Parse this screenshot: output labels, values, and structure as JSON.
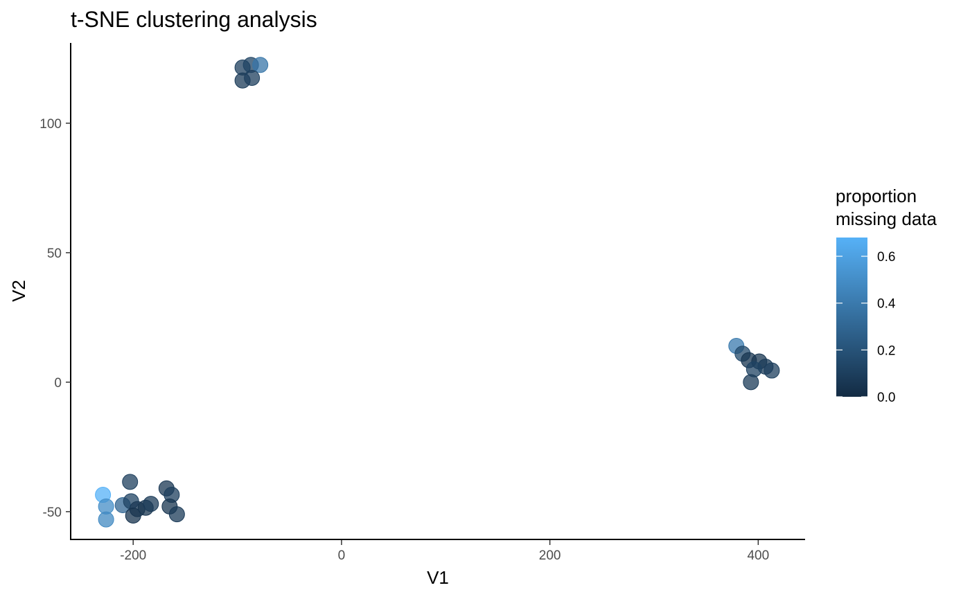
{
  "chart_data": {
    "type": "scatter",
    "title": "t-SNE clustering analysis",
    "xlabel": "V1",
    "ylabel": "V2",
    "xlim": [
      -260,
      445
    ],
    "ylim": [
      -61,
      131
    ],
    "xticks": [
      -200,
      0,
      200,
      400
    ],
    "xtick_labels": [
      "-200",
      "0",
      "200",
      "400"
    ],
    "yticks": [
      -50,
      0,
      50,
      100
    ],
    "ytick_labels": [
      "-50",
      "0",
      "50",
      "100"
    ],
    "grid": false,
    "legend": {
      "title_lines": [
        "proportion",
        "missing data"
      ],
      "placement": "right",
      "range": [
        0,
        0.68
      ],
      "ticks": [
        0.0,
        0.2,
        0.4,
        0.6
      ],
      "tick_labels": [
        "0.0",
        "0.2",
        "0.4",
        "0.6"
      ],
      "color_low": "#132B43",
      "color_high": "#56B1F7"
    },
    "point_opacity": 0.75,
    "points": [
      {
        "x": -95,
        "y": 121.5,
        "c": 0.1
      },
      {
        "x": -87,
        "y": 122.5,
        "c": 0.12
      },
      {
        "x": -78,
        "y": 122.5,
        "c": 0.38
      },
      {
        "x": -95,
        "y": 116.5,
        "c": 0.08
      },
      {
        "x": -86,
        "y": 117.5,
        "c": 0.1
      },
      {
        "x": 379,
        "y": 14,
        "c": 0.4
      },
      {
        "x": 385,
        "y": 11,
        "c": 0.15
      },
      {
        "x": 391,
        "y": 8.5,
        "c": 0.05
      },
      {
        "x": 401,
        "y": 8,
        "c": 0.05
      },
      {
        "x": 407,
        "y": 6,
        "c": 0.08
      },
      {
        "x": 413,
        "y": 4.5,
        "c": 0.1
      },
      {
        "x": 396,
        "y": 5,
        "c": 0.12
      },
      {
        "x": 393,
        "y": 0,
        "c": 0.08
      },
      {
        "x": -229,
        "y": -43.5,
        "c": 0.68
      },
      {
        "x": -226,
        "y": -48,
        "c": 0.5
      },
      {
        "x": -226,
        "y": -53,
        "c": 0.48
      },
      {
        "x": -210,
        "y": -47.5,
        "c": 0.3
      },
      {
        "x": -203,
        "y": -38.5,
        "c": 0.1
      },
      {
        "x": -202,
        "y": -46,
        "c": 0.12
      },
      {
        "x": -196,
        "y": -49,
        "c": 0.06
      },
      {
        "x": -200,
        "y": -51.5,
        "c": 0.04
      },
      {
        "x": -188,
        "y": -48.5,
        "c": 0.05
      },
      {
        "x": -183,
        "y": -47,
        "c": 0.08
      },
      {
        "x": -168,
        "y": -41,
        "c": 0.06
      },
      {
        "x": -163,
        "y": -43.5,
        "c": 0.1
      },
      {
        "x": -165,
        "y": -48,
        "c": 0.05
      },
      {
        "x": -158,
        "y": -51,
        "c": 0.08
      }
    ]
  }
}
